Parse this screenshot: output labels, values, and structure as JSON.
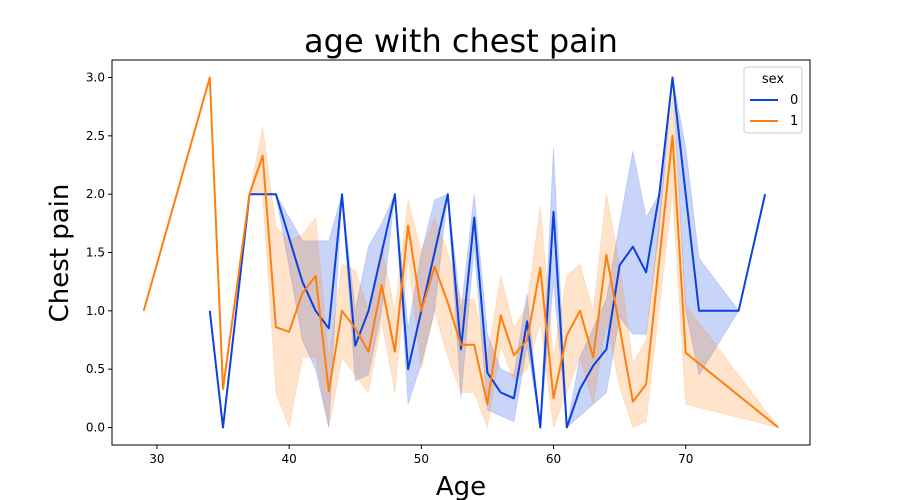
{
  "chart_data": {
    "type": "line",
    "title": "age with chest pain",
    "xlabel": "Age",
    "ylabel": "Chest pain",
    "xlim": [
      26.6,
      79.4
    ],
    "ylim": [
      -0.15,
      3.15
    ],
    "x_ticks": [
      30,
      40,
      50,
      60,
      70
    ],
    "y_ticks": [
      0.0,
      0.5,
      1.0,
      1.5,
      2.0,
      2.5,
      3.0
    ],
    "y_tick_labels": [
      "0.0",
      "0.5",
      "1.0",
      "1.5",
      "2.0",
      "2.5",
      "3.0"
    ],
    "legend": {
      "title": "sex",
      "position": "top-right"
    },
    "series": [
      {
        "name": "0",
        "color": "#0b41e0",
        "x": [
          34,
          35,
          37,
          38,
          39,
          41,
          42,
          43,
          44,
          45,
          46,
          47,
          48,
          49,
          50,
          51,
          52,
          53,
          54,
          55,
          56,
          57,
          58,
          59,
          60,
          61,
          62,
          63,
          64,
          65,
          66,
          67,
          68,
          69,
          70,
          71,
          74,
          76
        ],
        "y": [
          1.0,
          0.0,
          2.0,
          2.0,
          2.0,
          1.25,
          1.0,
          0.85,
          2.0,
          0.7,
          1.0,
          1.5,
          2.0,
          0.5,
          1.0,
          1.5,
          2.0,
          0.67,
          1.8,
          0.47,
          0.3,
          0.25,
          0.91,
          0.0,
          1.85,
          0.0,
          0.33,
          0.53,
          0.67,
          1.39,
          1.55,
          1.33,
          2.0,
          3.0,
          2.0,
          1.0,
          1.0,
          2.0
        ],
        "ci_low": [
          1.0,
          0.0,
          2.0,
          2.0,
          2.0,
          0.75,
          0.5,
          0.0,
          2.0,
          0.4,
          0.45,
          1.0,
          2.0,
          0.2,
          0.55,
          1.0,
          2.0,
          0.25,
          1.55,
          0.15,
          0.1,
          0.05,
          0.7,
          0.0,
          1.25,
          0.0,
          0.1,
          0.2,
          0.3,
          0.95,
          0.8,
          0.8,
          1.7,
          3.0,
          1.0,
          0.45,
          1.0,
          2.0
        ],
        "ci_high": [
          1.0,
          0.0,
          2.0,
          2.0,
          2.0,
          1.6,
          1.6,
          1.6,
          2.0,
          1.0,
          1.55,
          1.75,
          2.0,
          0.85,
          1.5,
          1.95,
          2.0,
          1.0,
          2.0,
          0.8,
          0.5,
          0.45,
          1.15,
          0.0,
          2.4,
          0.0,
          0.6,
          0.85,
          1.1,
          1.75,
          2.37,
          1.8,
          2.0,
          3.0,
          2.4,
          1.45,
          1.0,
          2.0
        ]
      },
      {
        "name": "1",
        "color": "#ff7f0e",
        "x": [
          29,
          34,
          35,
          37,
          38,
          39,
          40,
          41,
          42,
          43,
          44,
          45,
          46,
          47,
          48,
          49,
          50,
          51,
          52,
          53,
          54,
          55,
          56,
          57,
          58,
          59,
          60,
          61,
          62,
          63,
          64,
          65,
          66,
          67,
          69,
          70,
          77
        ],
        "y": [
          1.0,
          3.0,
          0.33,
          2.0,
          2.33,
          0.86,
          0.82,
          1.15,
          1.3,
          0.31,
          1.0,
          0.85,
          0.65,
          1.22,
          0.65,
          1.73,
          1.0,
          1.38,
          1.07,
          0.71,
          0.71,
          0.2,
          0.96,
          0.62,
          0.75,
          1.37,
          0.25,
          0.79,
          1.0,
          0.6,
          1.48,
          0.86,
          0.22,
          0.37,
          2.5,
          0.64,
          0.0
        ],
        "ci_low": [
          1.0,
          3.0,
          0.33,
          2.0,
          2.0,
          0.3,
          0.0,
          0.6,
          0.6,
          0.0,
          0.6,
          0.45,
          0.3,
          0.9,
          0.3,
          1.45,
          0.5,
          1.0,
          0.6,
          0.3,
          0.3,
          0.0,
          0.7,
          0.4,
          0.5,
          0.9,
          0.0,
          0.3,
          0.6,
          0.2,
          0.9,
          0.35,
          0.0,
          0.05,
          2.0,
          0.2,
          0.0
        ],
        "ci_high": [
          1.0,
          3.0,
          0.33,
          2.0,
          2.58,
          1.72,
          1.6,
          1.65,
          1.8,
          0.6,
          1.4,
          1.35,
          1.0,
          1.55,
          1.0,
          1.95,
          1.5,
          1.8,
          1.5,
          1.1,
          1.1,
          0.6,
          1.3,
          0.85,
          1.05,
          1.9,
          0.6,
          1.3,
          1.4,
          1.0,
          2.0,
          1.4,
          0.55,
          0.75,
          2.85,
          1.05,
          0.0
        ]
      }
    ]
  }
}
